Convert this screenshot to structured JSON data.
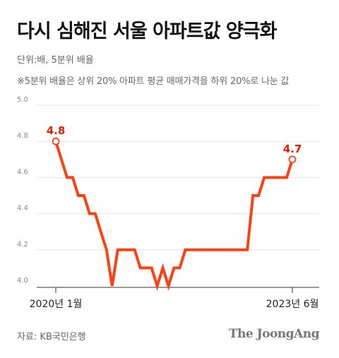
{
  "header": {
    "title": "다시 심해진 서울 아파트값 양극화",
    "unit": "단위:배, 5분위 배율",
    "note": "※5분위 배율은 상위 20% 아파트 평균 매매가격을 하위 20%로 나눈 값"
  },
  "footer": {
    "source": "자료: KB국민은행",
    "logo": "The JoongAng"
  },
  "colors": {
    "line": "#ff4013",
    "grid": "#e6e6e6",
    "axis": "#333333",
    "label": "#e02000"
  },
  "chart_data": {
    "type": "line",
    "x_start_label": "2020년 1월",
    "x_end_label": "2023년 6월",
    "ylim": [
      4.0,
      5.0
    ],
    "y_ticks": [
      "4.0",
      "4.2",
      "4.4",
      "4.6",
      "4.8",
      "5.0"
    ],
    "grid": true,
    "start_value_label": "4.8",
    "end_value_label": "4.7",
    "series": [
      {
        "values": [
          4.8,
          4.7,
          4.6,
          4.6,
          4.5,
          4.5,
          4.4,
          4.4,
          4.3,
          4.2,
          4.0,
          4.2,
          4.2,
          4.2,
          4.2,
          4.1,
          4.1,
          4.1,
          4.0,
          4.1,
          4.0,
          4.1,
          4.1,
          4.2,
          4.2,
          4.2,
          4.2,
          4.2,
          4.2,
          4.2,
          4.2,
          4.2,
          4.2,
          4.2,
          4.2,
          4.5,
          4.5,
          4.6,
          4.6,
          4.6,
          4.6,
          4.6,
          4.7
        ]
      }
    ]
  }
}
